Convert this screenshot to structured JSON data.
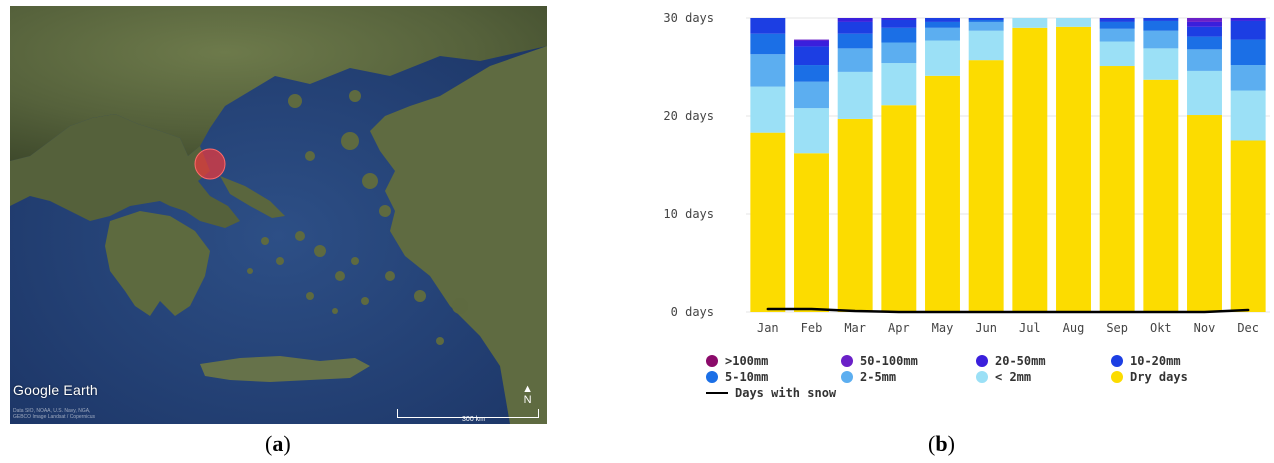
{
  "panel_a": {
    "label_open": "(",
    "label_letter": "a",
    "label_close": ")",
    "logo": "Google Earth",
    "attribution": "Data SIO, NOAA, U.S. Navy, NGA, GEBCO Image Landsat / Copernicus",
    "scale": "300 km",
    "north": "N"
  },
  "panel_b": {
    "label_open": "(",
    "label_letter": "b",
    "label_close": ")"
  },
  "chart_data": {
    "type": "bar",
    "stacked": true,
    "categories": [
      "Jan",
      "Feb",
      "Mar",
      "Apr",
      "May",
      "Jun",
      "Jul",
      "Aug",
      "Sep",
      "Okt",
      "Nov",
      "Dec"
    ],
    "yticks": [
      "0 days",
      "10 days",
      "20 days",
      "30 days"
    ],
    "ylim": [
      0,
      30
    ],
    "series": [
      {
        "name": "Dry days",
        "color": "#fcdc00",
        "values": [
          18.3,
          16.2,
          19.7,
          21.1,
          24.1,
          25.7,
          29.0,
          29.1,
          25.1,
          23.7,
          20.1,
          17.5
        ]
      },
      {
        "name": "< 2mm",
        "color": "#9be0f6",
        "values": [
          4.7,
          4.6,
          4.8,
          4.3,
          3.6,
          3.0,
          1.0,
          0.9,
          2.5,
          3.2,
          4.5,
          5.1
        ]
      },
      {
        "name": "2-5mm",
        "color": "#5caef0",
        "values": [
          3.3,
          2.7,
          2.4,
          2.1,
          1.3,
          0.9,
          0.0,
          0.0,
          1.3,
          1.8,
          2.2,
          2.6
        ]
      },
      {
        "name": "5-10mm",
        "color": "#1b6fe6",
        "values": [
          2.1,
          1.7,
          1.5,
          1.5,
          0.6,
          0.2,
          0.0,
          0.0,
          0.7,
          1.0,
          1.3,
          2.6
        ]
      },
      {
        "name": "10-20mm",
        "color": "#1c3ee3",
        "values": [
          1.6,
          1.9,
          1.2,
          0.8,
          0.4,
          0.2,
          0.0,
          0.0,
          0.3,
          0.3,
          1.0,
          1.9
        ]
      },
      {
        "name": "20-50mm",
        "color": "#3a1fdc",
        "values": [
          0.0,
          0.6,
          0.4,
          0.2,
          0.0,
          0.0,
          0.0,
          0.0,
          0.1,
          0.0,
          0.5,
          0.3
        ]
      },
      {
        "name": "50-100mm",
        "color": "#6a20c8",
        "values": [
          0.0,
          0.1,
          0.0,
          0.0,
          0.0,
          0.0,
          0.0,
          0.0,
          0.0,
          0.0,
          0.4,
          0.0
        ]
      },
      {
        "name": ">100mm",
        "color": "#8b0a6a",
        "values": [
          0.0,
          0.0,
          0.0,
          0.0,
          0.0,
          0.0,
          0.0,
          0.0,
          0.0,
          0.0,
          0.0,
          0.0
        ]
      }
    ],
    "snow_line": {
      "name": "Days with snow",
      "color": "#000000",
      "values": [
        0.3,
        0.3,
        0.1,
        0.0,
        0.0,
        0.0,
        0.0,
        0.0,
        0.0,
        0.0,
        0.0,
        0.2
      ]
    },
    "legend": [
      {
        "label": ">100mm",
        "color": "#8b0a6a",
        "kind": "dot"
      },
      {
        "label": "50-100mm",
        "color": "#6a20c8",
        "kind": "dot"
      },
      {
        "label": "20-50mm",
        "color": "#3a1fdc",
        "kind": "dot"
      },
      {
        "label": "10-20mm",
        "color": "#1c3ee3",
        "kind": "dot"
      },
      {
        "label": "5-10mm",
        "color": "#1b6fe6",
        "kind": "dot"
      },
      {
        "label": "2-5mm",
        "color": "#5caef0",
        "kind": "dot"
      },
      {
        "label": "< 2mm",
        "color": "#9be0f6",
        "kind": "dot"
      },
      {
        "label": "Dry days",
        "color": "#fcdc00",
        "kind": "dot"
      },
      {
        "label": "Days with snow",
        "color": "#000000",
        "kind": "line"
      }
    ]
  }
}
